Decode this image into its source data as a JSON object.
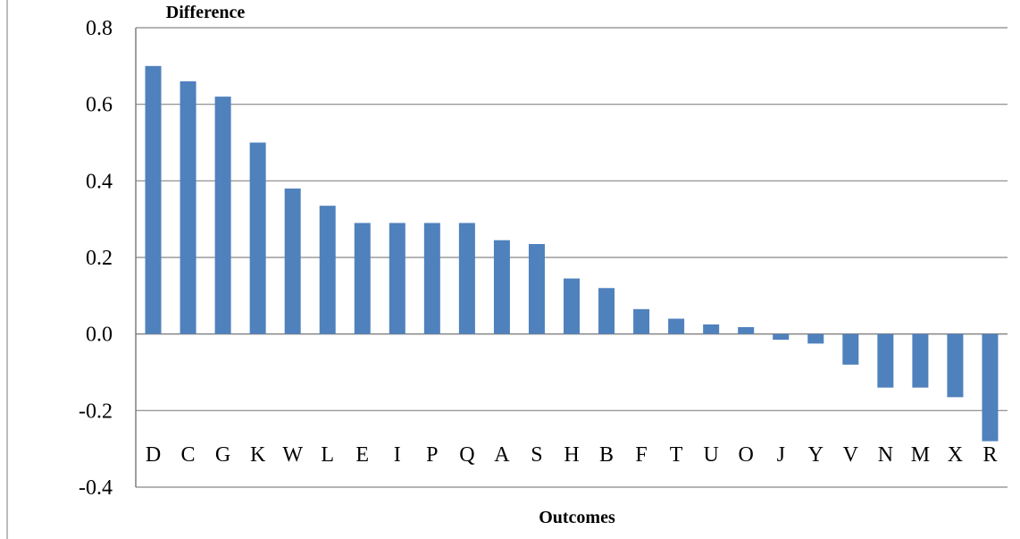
{
  "chart_data": {
    "type": "bar",
    "title": "",
    "ylabel": "Difference",
    "xlabel": "Outcomes",
    "ylim": [
      -0.4,
      0.8
    ],
    "yticks": [
      "-0.4",
      "-0.2",
      "0.0",
      "0.2",
      "0.4",
      "0.6",
      "0.8"
    ],
    "grid": true,
    "legend": "none",
    "bar_color": "#4f81bd",
    "categories": [
      "D",
      "C",
      "G",
      "K",
      "W",
      "L",
      "E",
      "I",
      "P",
      "Q",
      "A",
      "S",
      "H",
      "B",
      "F",
      "T",
      "U",
      "O",
      "J",
      "Y",
      "V",
      "N",
      "M",
      "X",
      "R"
    ],
    "values": [
      0.7,
      0.66,
      0.62,
      0.5,
      0.38,
      0.335,
      0.29,
      0.29,
      0.29,
      0.29,
      0.245,
      0.235,
      0.145,
      0.12,
      0.065,
      0.04,
      0.025,
      0.018,
      -0.015,
      -0.025,
      -0.08,
      -0.14,
      -0.14,
      -0.165,
      -0.28
    ]
  }
}
